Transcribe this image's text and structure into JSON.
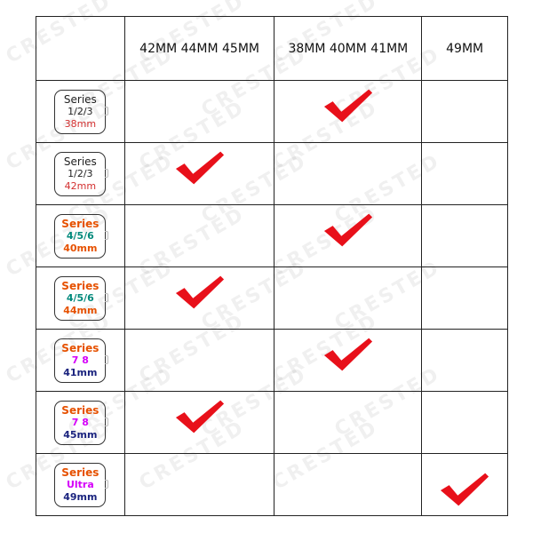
{
  "watermark": "CRESTED",
  "header": [
    "",
    "42MM  44MM  45MM",
    "38MM  40MM  41MM",
    "49MM"
  ],
  "rows": [
    {
      "line1": "Series",
      "line2": "1/2/3",
      "line3": "38mm",
      "colors": [
        "#222222",
        "#222222",
        "#d32f2f"
      ],
      "plain": true,
      "check": 2
    },
    {
      "line1": "Series",
      "line2": "1/2/3",
      "line3": "42mm",
      "colors": [
        "#222222",
        "#222222",
        "#d32f2f"
      ],
      "plain": true,
      "check": 1
    },
    {
      "line1": "Series",
      "line2": "4/5/6",
      "line3": "40mm",
      "colors": [
        "#e65100",
        "#00897b",
        "#e65100"
      ],
      "plain": false,
      "check": 2
    },
    {
      "line1": "Series",
      "line2": "4/5/6",
      "line3": "44mm",
      "colors": [
        "#e65100",
        "#00897b",
        "#e65100"
      ],
      "plain": false,
      "check": 1
    },
    {
      "line1": "Series",
      "line2": "7 8",
      "line3": "41mm",
      "colors": [
        "#e65100",
        "#d500f9",
        "#1a237e"
      ],
      "plain": false,
      "check": 2
    },
    {
      "line1": "Series",
      "line2": "7 8",
      "line3": "45mm",
      "colors": [
        "#e65100",
        "#d500f9",
        "#1a237e"
      ],
      "plain": false,
      "check": 1
    },
    {
      "line1": "Series",
      "line2": "Ultra",
      "line3": "49mm",
      "colors": [
        "#e65100",
        "#d500f9",
        "#1a237e"
      ],
      "plain": false,
      "check": 3
    }
  ],
  "check_icon": "checkmark-icon",
  "check_color": "#e8101a"
}
